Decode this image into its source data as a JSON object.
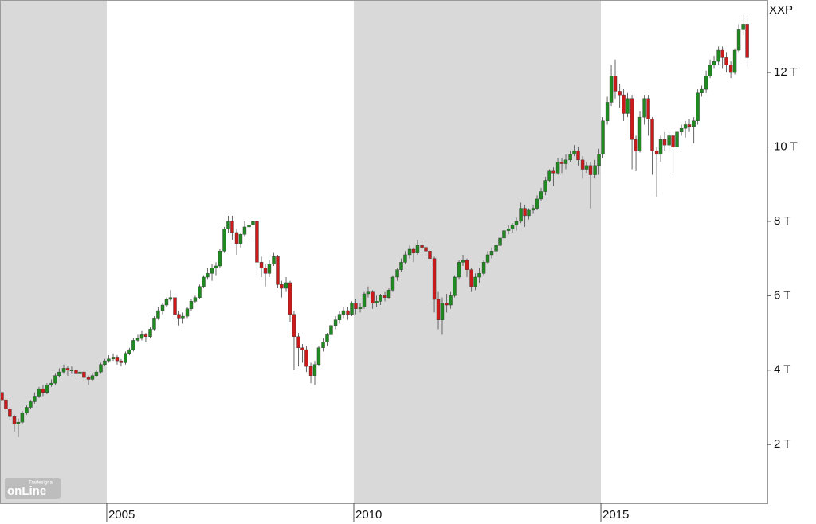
{
  "chart_data": {
    "type": "candlestick",
    "title": "XXP",
    "logo": {
      "small": "Tradesignal",
      "big": "onLine"
    },
    "up_color": "#1f8a1f",
    "down_color": "#cc1a1a",
    "wick_color": "#666666",
    "shade_color": "#d9d9d9",
    "alternate_shading": true,
    "xlim": [
      2002.84,
      2018.37
    ],
    "xticks": [
      2005,
      2010,
      2015
    ],
    "ylim": [
      420,
      13950
    ],
    "yticks": [
      {
        "value": 2000,
        "label": "2 T"
      },
      {
        "value": 4000,
        "label": "4 T"
      },
      {
        "value": 6000,
        "label": "6 T"
      },
      {
        "value": 8000,
        "label": "8 T"
      },
      {
        "value": 10000,
        "label": "10 T"
      },
      {
        "value": 12000,
        "label": "12 T"
      }
    ],
    "x": [
      2002.88,
      2002.96,
      2003.04,
      2003.13,
      2003.21,
      2003.29,
      2003.38,
      2003.46,
      2003.54,
      2003.63,
      2003.71,
      2003.79,
      2003.88,
      2003.96,
      2004.04,
      2004.13,
      2004.21,
      2004.29,
      2004.38,
      2004.46,
      2004.54,
      2004.63,
      2004.71,
      2004.79,
      2004.88,
      2004.96,
      2005.04,
      2005.13,
      2005.21,
      2005.29,
      2005.38,
      2005.46,
      2005.54,
      2005.63,
      2005.71,
      2005.79,
      2005.88,
      2005.96,
      2006.04,
      2006.13,
      2006.21,
      2006.29,
      2006.38,
      2006.46,
      2006.54,
      2006.63,
      2006.71,
      2006.79,
      2006.88,
      2006.96,
      2007.04,
      2007.13,
      2007.21,
      2007.29,
      2007.38,
      2007.46,
      2007.54,
      2007.63,
      2007.71,
      2007.79,
      2007.88,
      2007.96,
      2008.04,
      2008.13,
      2008.21,
      2008.29,
      2008.38,
      2008.46,
      2008.54,
      2008.63,
      2008.71,
      2008.79,
      2008.88,
      2008.96,
      2009.04,
      2009.13,
      2009.21,
      2009.29,
      2009.38,
      2009.46,
      2009.54,
      2009.63,
      2009.71,
      2009.79,
      2009.88,
      2009.96,
      2010.04,
      2010.13,
      2010.21,
      2010.29,
      2010.38,
      2010.46,
      2010.54,
      2010.63,
      2010.71,
      2010.79,
      2010.88,
      2010.96,
      2011.04,
      2011.13,
      2011.21,
      2011.29,
      2011.38,
      2011.46,
      2011.54,
      2011.63,
      2011.71,
      2011.79,
      2011.88,
      2011.96,
      2012.04,
      2012.13,
      2012.21,
      2012.29,
      2012.38,
      2012.46,
      2012.54,
      2012.63,
      2012.71,
      2012.79,
      2012.88,
      2012.96,
      2013.04,
      2013.13,
      2013.21,
      2013.29,
      2013.38,
      2013.46,
      2013.54,
      2013.63,
      2013.71,
      2013.79,
      2013.88,
      2013.96,
      2014.04,
      2014.13,
      2014.21,
      2014.29,
      2014.38,
      2014.46,
      2014.54,
      2014.63,
      2014.71,
      2014.79,
      2014.88,
      2014.96,
      2015.04,
      2015.13,
      2015.21,
      2015.29,
      2015.38,
      2015.46,
      2015.54,
      2015.63,
      2015.71,
      2015.79,
      2015.88,
      2015.96,
      2016.04,
      2016.13,
      2016.21,
      2016.29,
      2016.38,
      2016.46,
      2016.54,
      2016.63,
      2016.71,
      2016.79,
      2016.88,
      2016.96,
      2017.04,
      2017.13,
      2017.21,
      2017.29,
      2017.38,
      2017.46,
      2017.54,
      2017.63,
      2017.71,
      2017.79,
      2017.88,
      2017.96
    ],
    "open": [
      3400,
      3200,
      2950,
      2750,
      2550,
      2600,
      2850,
      3000,
      3150,
      3300,
      3500,
      3400,
      3600,
      3650,
      3850,
      3950,
      4050,
      4000,
      4000,
      3900,
      3950,
      3800,
      3750,
      3850,
      3950,
      4150,
      4250,
      4300,
      4350,
      4250,
      4200,
      4450,
      4550,
      4800,
      4850,
      4950,
      4900,
      5100,
      5400,
      5600,
      5750,
      5900,
      5950,
      5500,
      5400,
      5450,
      5650,
      5850,
      5950,
      6250,
      6500,
      6600,
      6750,
      6800,
      7200,
      7800,
      8000,
      7700,
      7400,
      7650,
      7850,
      7900,
      8000,
      6900,
      6750,
      6600,
      6850,
      7050,
      6300,
      6200,
      6350,
      5500,
      4900,
      4600,
      4550,
      4100,
      3850,
      4150,
      4600,
      4750,
      4950,
      5200,
      5350,
      5500,
      5600,
      5500,
      5800,
      5650,
      5700,
      6050,
      6100,
      5800,
      5850,
      6000,
      5950,
      6150,
      6500,
      6700,
      6900,
      7100,
      7250,
      7150,
      7350,
      7300,
      7200,
      7000,
      5900,
      5350,
      5800,
      5750,
      6000,
      6500,
      6900,
      6950,
      6700,
      6250,
      6500,
      6600,
      6900,
      7100,
      7200,
      7350,
      7550,
      7750,
      7800,
      7900,
      8000,
      8350,
      8150,
      8300,
      8350,
      8600,
      8800,
      9100,
      9350,
      9300,
      9600,
      9550,
      9650,
      9800,
      9900,
      9650,
      9400,
      9500,
      9250,
      9500,
      9800,
      10700,
      11200,
      11900,
      11500,
      11400,
      10900,
      11300,
      10200,
      9900,
      10800,
      11300,
      10750,
      9900,
      9800,
      10200,
      10050,
      10300,
      10000,
      10400,
      10500,
      10600,
      10550,
      10700,
      11450,
      11550,
      11900,
      12200,
      12300,
      12600,
      12400,
      12200,
      12000,
      12600,
      13150,
      13300
    ],
    "high": [
      3500,
      3250,
      3000,
      2800,
      2700,
      2900,
      3050,
      3200,
      3400,
      3550,
      3600,
      3650,
      3750,
      3900,
      4050,
      4150,
      4100,
      4100,
      4050,
      4000,
      4000,
      3850,
      3900,
      4000,
      4200,
      4300,
      4400,
      4450,
      4400,
      4300,
      4500,
      4600,
      4850,
      4950,
      5050,
      5000,
      5150,
      5450,
      5700,
      5800,
      5950,
      6150,
      6050,
      5600,
      5550,
      5700,
      5900,
      6000,
      6300,
      6550,
      6750,
      6850,
      6900,
      7250,
      7850,
      8150,
      8150,
      7800,
      7700,
      8000,
      8000,
      8100,
      8050,
      7050,
      6850,
      6950,
      7150,
      7100,
      6400,
      6500,
      6400,
      5600,
      5000,
      4700,
      4650,
      4200,
      4250,
      4650,
      4850,
      5000,
      5250,
      5450,
      5600,
      5700,
      5700,
      5850,
      5900,
      5800,
      6100,
      6250,
      6150,
      6000,
      6050,
      6100,
      6200,
      6550,
      6750,
      7000,
      7200,
      7350,
      7300,
      7500,
      7450,
      7350,
      7300,
      7050,
      6100,
      5950,
      6050,
      6100,
      6550,
      6950,
      7100,
      7000,
      6750,
      6600,
      6750,
      6950,
      7200,
      7300,
      7400,
      7600,
      7800,
      7900,
      7950,
      8100,
      8500,
      8450,
      8350,
      8450,
      8700,
      8900,
      9200,
      9400,
      9450,
      9700,
      9700,
      9800,
      9900,
      10050,
      10000,
      9750,
      9600,
      9600,
      9650,
      9950,
      10800,
      11350,
      12200,
      12350,
      11700,
      11550,
      11450,
      11400,
      10300,
      10950,
      11400,
      11400,
      10800,
      10000,
      10300,
      10400,
      10400,
      10400,
      10500,
      10600,
      10700,
      10750,
      10800,
      11550,
      11650,
      12050,
      12350,
      12450,
      12700,
      12700,
      12550,
      12300,
      12650,
      13300,
      13550,
      13450
    ],
    "low": [
      3100,
      2850,
      2650,
      2350,
      2200,
      2550,
      2800,
      2950,
      3100,
      3250,
      3300,
      3350,
      3550,
      3600,
      3800,
      3900,
      3850,
      3900,
      3750,
      3800,
      3700,
      3600,
      3700,
      3800,
      3900,
      4100,
      4200,
      4250,
      4150,
      4100,
      4150,
      4400,
      4500,
      4750,
      4800,
      4750,
      4850,
      5050,
      5350,
      5500,
      5700,
      5850,
      5300,
      5200,
      5250,
      5400,
      5600,
      5800,
      5900,
      6200,
      6450,
      6400,
      6550,
      6750,
      7150,
      7700,
      7500,
      7100,
      7300,
      7600,
      7500,
      7800,
      6550,
      6500,
      6250,
      6500,
      6800,
      6200,
      5950,
      6100,
      5300,
      4000,
      4100,
      4200,
      3950,
      3650,
      3600,
      4100,
      4500,
      4650,
      4900,
      5100,
      5250,
      5400,
      5350,
      5450,
      5500,
      5550,
      5650,
      5950,
      5650,
      5700,
      5750,
      5850,
      5900,
      6100,
      6400,
      6650,
      6850,
      7000,
      6900,
      7100,
      7150,
      7000,
      6900,
      5550,
      5100,
      4950,
      5550,
      5650,
      5950,
      6450,
      6800,
      6500,
      6100,
      6150,
      6350,
      6550,
      6850,
      7000,
      7050,
      7300,
      7500,
      7650,
      7700,
      7750,
      7950,
      7850,
      8050,
      8200,
      8300,
      8550,
      8700,
      9050,
      8950,
      9250,
      9300,
      9400,
      9600,
      9750,
      9500,
      9150,
      9300,
      8350,
      9150,
      9250,
      9700,
      10600,
      11100,
      11300,
      11050,
      10700,
      10800,
      9400,
      9350,
      9850,
      10600,
      10300,
      9250,
      8650,
      9600,
      9900,
      9900,
      9300,
      9950,
      10300,
      10250,
      10400,
      10100,
      10600,
      11350,
      11450,
      11850,
      12100,
      12200,
      12100,
      12000,
      11850,
      11950,
      12550,
      13000,
      12100
    ],
    "close": [
      3200,
      2950,
      2750,
      2550,
      2600,
      2850,
      3000,
      3150,
      3300,
      3500,
      3400,
      3600,
      3650,
      3850,
      3950,
      4050,
      4000,
      4000,
      3900,
      3950,
      3800,
      3750,
      3850,
      3950,
      4150,
      4250,
      4300,
      4350,
      4250,
      4200,
      4450,
      4550,
      4800,
      4850,
      4950,
      4900,
      5100,
      5400,
      5600,
      5750,
      5900,
      5950,
      5500,
      5400,
      5450,
      5650,
      5850,
      5950,
      6250,
      6500,
      6600,
      6750,
      6800,
      7200,
      7800,
      8000,
      7700,
      7400,
      7650,
      7850,
      7900,
      8000,
      6900,
      6750,
      6600,
      6850,
      7050,
      6300,
      6200,
      6350,
      5500,
      4900,
      4600,
      4550,
      4100,
      3850,
      4150,
      4600,
      4750,
      4950,
      5200,
      5350,
      5500,
      5600,
      5500,
      5800,
      5650,
      5700,
      6050,
      6100,
      5800,
      5850,
      6000,
      5950,
      6150,
      6500,
      6700,
      6900,
      7100,
      7250,
      7150,
      7350,
      7300,
      7200,
      7000,
      5900,
      5350,
      5800,
      5750,
      6000,
      6500,
      6900,
      6950,
      6700,
      6250,
      6500,
      6600,
      6900,
      7100,
      7200,
      7350,
      7550,
      7750,
      7800,
      7900,
      8000,
      8350,
      8150,
      8300,
      8350,
      8600,
      8800,
      9100,
      9350,
      9300,
      9600,
      9550,
      9650,
      9800,
      9900,
      9650,
      9400,
      9500,
      9250,
      9500,
      9800,
      10700,
      11200,
      11900,
      11500,
      11400,
      10900,
      11300,
      10200,
      9900,
      10800,
      11300,
      10750,
      9900,
      9800,
      10200,
      10050,
      10300,
      10000,
      10400,
      10500,
      10600,
      10550,
      10700,
      11450,
      11550,
      11900,
      12200,
      12300,
      12600,
      12400,
      12200,
      12000,
      12600,
      13150,
      13300,
      12400
    ]
  }
}
